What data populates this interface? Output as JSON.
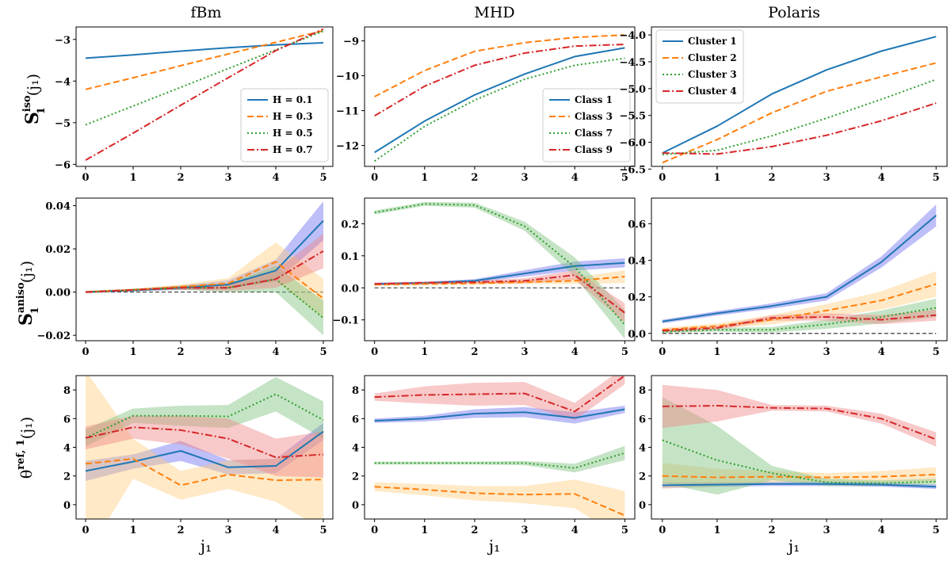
{
  "chart_data": [
    {
      "type": "line",
      "panel": "fBm iso",
      "title": "fBm",
      "xlabel": "",
      "ylabel": "S1^iso(j1)",
      "x": [
        0,
        1,
        2,
        3,
        4,
        5
      ],
      "xlim": [
        -0.2,
        5.2
      ],
      "ylim": [
        -6.05,
        -2.7
      ],
      "yticks": [
        -6,
        -5,
        -4,
        -3
      ],
      "yticklabels": [
        "−6",
        "−5",
        "−4",
        "−3"
      ],
      "legend": "bottom-right",
      "series": [
        {
          "name": "H = 0.1",
          "values": [
            -3.45,
            -3.37,
            -3.28,
            -3.2,
            -3.13,
            -3.08
          ]
        },
        {
          "name": "H = 0.3",
          "values": [
            -4.2,
            -3.92,
            -3.63,
            -3.35,
            -3.07,
            -2.79
          ]
        },
        {
          "name": "H = 0.5",
          "values": [
            -5.05,
            -4.6,
            -4.15,
            -3.7,
            -3.25,
            -2.8
          ]
        },
        {
          "name": "H = 0.7",
          "values": [
            -5.9,
            -5.25,
            -4.58,
            -3.92,
            -3.27,
            -2.75
          ]
        }
      ]
    },
    {
      "type": "line",
      "panel": "MHD iso",
      "title": "MHD",
      "xlabel": "",
      "ylabel": "",
      "x": [
        0,
        1,
        2,
        3,
        4,
        5
      ],
      "xlim": [
        -0.2,
        5.2
      ],
      "ylim": [
        -12.6,
        -8.6
      ],
      "yticks": [
        -12,
        -11,
        -10,
        -9
      ],
      "yticklabels": [
        "−12",
        "−11",
        "−10",
        "−9"
      ],
      "legend": "bottom-right",
      "series": [
        {
          "name": "Class 1",
          "values": [
            -12.2,
            -11.3,
            -10.55,
            -9.95,
            -9.45,
            -9.2
          ]
        },
        {
          "name": "Class 3",
          "values": [
            -10.6,
            -9.85,
            -9.3,
            -9.05,
            -8.9,
            -8.83
          ]
        },
        {
          "name": "Class 7",
          "values": [
            -12.45,
            -11.45,
            -10.7,
            -10.1,
            -9.7,
            -9.5
          ]
        },
        {
          "name": "Class 9",
          "values": [
            -11.15,
            -10.3,
            -9.7,
            -9.35,
            -9.15,
            -9.1
          ]
        }
      ]
    },
    {
      "type": "line",
      "panel": "Polaris iso",
      "title": "Polaris",
      "xlabel": "",
      "ylabel": "",
      "x": [
        0,
        1,
        2,
        3,
        4,
        5
      ],
      "xlim": [
        -0.2,
        5.2
      ],
      "ylim": [
        -6.45,
        -3.85
      ],
      "yticks": [
        -6.5,
        -6.0,
        -5.5,
        -5.0,
        -4.5,
        -4.0
      ],
      "yticklabels": [
        "−6.5",
        "−6.0",
        "−5.5",
        "−5.0",
        "−4.5",
        "−4.0"
      ],
      "legend": "top-left",
      "series": [
        {
          "name": "Cluster 1",
          "values": [
            -6.2,
            -5.7,
            -5.1,
            -4.65,
            -4.3,
            -4.03
          ]
        },
        {
          "name": "Cluster 2",
          "values": [
            -6.38,
            -5.95,
            -5.45,
            -5.05,
            -4.78,
            -4.52
          ]
        },
        {
          "name": "Cluster 3",
          "values": [
            -6.23,
            -6.15,
            -5.88,
            -5.55,
            -5.2,
            -4.83
          ]
        },
        {
          "name": "Cluster 4",
          "values": [
            -6.2,
            -6.22,
            -6.08,
            -5.87,
            -5.6,
            -5.27
          ]
        }
      ]
    },
    {
      "type": "line",
      "panel": "fBm aniso",
      "xlabel": "",
      "ylabel": "S1^aniso(j1)",
      "x": [
        0,
        1,
        2,
        3,
        4,
        5
      ],
      "xlim": [
        -0.2,
        5.2
      ],
      "ylim": [
        -0.0225,
        0.0435
      ],
      "yticks": [
        -0.02,
        0.0,
        0.02,
        0.04
      ],
      "yticklabels": [
        "−0.02",
        "0.00",
        "0.02",
        "0.04"
      ],
      "reference_line": 0,
      "series": [
        {
          "name": "H = 0.1",
          "values": [
            0.0,
            0.0008,
            0.002,
            0.0035,
            0.01,
            0.033
          ],
          "band": [
            0.0005,
            0.0005,
            0.001,
            0.002,
            0.005,
            0.009
          ]
        },
        {
          "name": "H = 0.3",
          "values": [
            0.0,
            0.001,
            0.0025,
            0.004,
            0.014,
            -0.003
          ],
          "band": [
            0.0005,
            0.0006,
            0.001,
            0.0025,
            0.009,
            0.009
          ]
        },
        {
          "name": "H = 0.5",
          "values": [
            0.0,
            0.001,
            0.002,
            0.002,
            0.006,
            -0.012
          ],
          "band": [
            0.0005,
            0.0005,
            0.001,
            0.002,
            0.006,
            0.008
          ]
        },
        {
          "name": "H = 0.7",
          "values": [
            0.0,
            0.001,
            0.002,
            0.002,
            0.006,
            0.019
          ],
          "band": [
            0.0005,
            0.0005,
            0.0008,
            0.0015,
            0.004,
            0.008
          ]
        }
      ]
    },
    {
      "type": "line",
      "panel": "MHD aniso",
      "xlabel": "",
      "ylabel": "",
      "x": [
        0,
        1,
        2,
        3,
        4,
        5
      ],
      "xlim": [
        -0.2,
        5.2
      ],
      "ylim": [
        -0.165,
        0.28
      ],
      "yticks": [
        -0.1,
        0.0,
        0.1,
        0.2
      ],
      "yticklabels": [
        "−0.1",
        "0.0",
        "0.1",
        "0.2"
      ],
      "reference_line": 0,
      "series": [
        {
          "name": "Class 1",
          "values": [
            0.012,
            0.015,
            0.022,
            0.045,
            0.068,
            0.078
          ],
          "band": [
            0.004,
            0.004,
            0.005,
            0.01,
            0.014,
            0.014
          ]
        },
        {
          "name": "Class 3",
          "values": [
            0.01,
            0.012,
            0.014,
            0.018,
            0.022,
            0.035
          ],
          "band": [
            0.004,
            0.004,
            0.004,
            0.006,
            0.01,
            0.02
          ]
        },
        {
          "name": "Class 7",
          "values": [
            0.235,
            0.262,
            0.258,
            0.192,
            0.065,
            -0.115
          ],
          "band": [
            0.006,
            0.006,
            0.008,
            0.014,
            0.03,
            0.045
          ]
        },
        {
          "name": "Class 9",
          "values": [
            0.012,
            0.016,
            0.018,
            0.022,
            0.04,
            -0.078
          ],
          "band": [
            0.004,
            0.004,
            0.005,
            0.008,
            0.015,
            0.03
          ]
        }
      ]
    },
    {
      "type": "line",
      "panel": "Polaris aniso",
      "xlabel": "",
      "ylabel": "",
      "x": [
        0,
        1,
        2,
        3,
        4,
        5
      ],
      "xlim": [
        -0.2,
        5.2
      ],
      "ylim": [
        -0.04,
        0.74
      ],
      "yticks": [
        0.0,
        0.2,
        0.4,
        0.6
      ],
      "yticklabels": [
        "0.0",
        "0.2",
        "0.4",
        "0.6"
      ],
      "reference_line": 0,
      "series": [
        {
          "name": "Cluster 1",
          "values": [
            0.065,
            0.11,
            0.15,
            0.2,
            0.39,
            0.645
          ],
          "band": [
            0.01,
            0.012,
            0.015,
            0.02,
            0.03,
            0.06
          ]
        },
        {
          "name": "Cluster 2",
          "values": [
            0.02,
            0.04,
            0.075,
            0.125,
            0.18,
            0.27
          ],
          "band": [
            0.01,
            0.015,
            0.025,
            0.035,
            0.05,
            0.07
          ]
        },
        {
          "name": "Cluster 3",
          "values": [
            0.01,
            0.02,
            0.02,
            0.05,
            0.09,
            0.14
          ],
          "band": [
            0.008,
            0.01,
            0.015,
            0.025,
            0.035,
            0.05
          ]
        },
        {
          "name": "Cluster 4",
          "values": [
            0.015,
            0.03,
            0.085,
            0.09,
            0.075,
            0.1
          ],
          "band": [
            0.01,
            0.01,
            0.015,
            0.02,
            0.025,
            0.03
          ]
        }
      ]
    },
    {
      "type": "line",
      "panel": "fBm theta",
      "xlabel": "j1",
      "ylabel": "theta^ref,1(j1)",
      "x": [
        0,
        1,
        2,
        3,
        4,
        5
      ],
      "xlim": [
        -0.2,
        5.2
      ],
      "ylim": [
        -1.0,
        9.0
      ],
      "yticks": [
        0,
        2,
        4,
        6,
        8
      ],
      "yticklabels": [
        "0",
        "2",
        "4",
        "6",
        "8"
      ],
      "series": [
        {
          "name": "H = 0.1",
          "values": [
            2.35,
            3.0,
            3.75,
            2.6,
            2.7,
            5.1
          ],
          "band": [
            0.7,
            0.5,
            0.7,
            0.5,
            0.5,
            0.6
          ]
        },
        {
          "name": "H = 0.3",
          "values": [
            2.85,
            3.2,
            1.35,
            2.1,
            1.7,
            1.75
          ],
          "band": [
            6.5,
            1.4,
            1.0,
            1.0,
            1.5,
            3.5
          ]
        },
        {
          "name": "H = 0.5",
          "values": [
            4.65,
            6.2,
            6.2,
            6.15,
            7.7,
            5.9
          ],
          "band": [
            0.6,
            0.5,
            0.7,
            0.8,
            1.2,
            1.3
          ]
        },
        {
          "name": "H = 0.7",
          "values": [
            4.65,
            5.4,
            5.2,
            4.6,
            3.3,
            3.5
          ],
          "band": [
            0.8,
            0.8,
            1.0,
            1.4,
            1.3,
            1.6
          ]
        }
      ]
    },
    {
      "type": "line",
      "panel": "MHD theta",
      "xlabel": "j1",
      "ylabel": "",
      "x": [
        0,
        1,
        2,
        3,
        4,
        5
      ],
      "xlim": [
        -0.2,
        5.2
      ],
      "ylim": [
        -1.0,
        9.0
      ],
      "yticks": [
        0,
        2,
        4,
        6,
        8
      ],
      "yticklabels": [
        "0",
        "2",
        "4",
        "6",
        "8"
      ],
      "series": [
        {
          "name": "Class 1",
          "values": [
            5.85,
            6.0,
            6.35,
            6.45,
            6.05,
            6.65
          ],
          "band": [
            0.15,
            0.2,
            0.3,
            0.35,
            0.4,
            0.25
          ]
        },
        {
          "name": "Class 3",
          "values": [
            1.25,
            1.05,
            0.8,
            0.7,
            0.75,
            -0.75
          ],
          "band": [
            0.3,
            0.4,
            0.5,
            0.6,
            1.0,
            1.7
          ]
        },
        {
          "name": "Class 7",
          "values": [
            2.9,
            2.9,
            2.9,
            2.9,
            2.55,
            3.6
          ],
          "band": [
            0.1,
            0.1,
            0.1,
            0.15,
            0.3,
            0.5
          ]
        },
        {
          "name": "Class 9",
          "values": [
            7.5,
            7.65,
            7.7,
            7.75,
            6.5,
            9.0
          ],
          "band": [
            0.25,
            0.6,
            0.8,
            0.8,
            0.6,
            0.6
          ]
        }
      ]
    },
    {
      "type": "line",
      "panel": "Polaris theta",
      "xlabel": "j1",
      "ylabel": "",
      "x": [
        0,
        1,
        2,
        3,
        4,
        5
      ],
      "xlim": [
        -0.2,
        5.2
      ],
      "ylim": [
        -1.0,
        9.0
      ],
      "yticks": [
        0,
        2,
        4,
        6,
        8
      ],
      "yticklabels": [
        "0",
        "2",
        "4",
        "6",
        "8"
      ],
      "series": [
        {
          "name": "Cluster 1",
          "values": [
            1.35,
            1.4,
            1.45,
            1.45,
            1.4,
            1.25
          ],
          "band": [
            0.2,
            0.15,
            0.15,
            0.15,
            0.15,
            0.15
          ]
        },
        {
          "name": "Cluster 2",
          "values": [
            2.0,
            1.9,
            1.95,
            1.9,
            1.95,
            2.1
          ],
          "band": [
            0.9,
            0.6,
            0.4,
            0.3,
            0.4,
            0.5
          ]
        },
        {
          "name": "Cluster 3",
          "values": [
            4.5,
            3.1,
            2.2,
            1.55,
            1.5,
            1.6
          ],
          "band": [
            3.0,
            2.4,
            0.5,
            0.25,
            0.2,
            0.2
          ]
        },
        {
          "name": "Cluster 4",
          "values": [
            6.85,
            6.9,
            6.75,
            6.7,
            6.0,
            4.55
          ],
          "band": [
            1.5,
            1.1,
            0.2,
            0.2,
            0.35,
            0.5
          ]
        }
      ]
    }
  ],
  "row_ylabels": [
    {
      "main": "S",
      "sup": "iso",
      "sub": "1",
      "rest": "(j₁)"
    },
    {
      "main": "S",
      "sup": "aniso",
      "sub": "1",
      "rest": "(j₁)"
    },
    {
      "main": "θ",
      "sup": "ref, 1",
      "sub": "",
      "rest": "(j₁)"
    }
  ],
  "xlabel": "j₁",
  "series_colors": [
    "#1f77b4",
    "#ff7f0e",
    "#2ca02c",
    "#d62728"
  ],
  "band_colors": [
    "#6f6ff0",
    "#ffcf80",
    "#7fc07f",
    "#f08888"
  ]
}
